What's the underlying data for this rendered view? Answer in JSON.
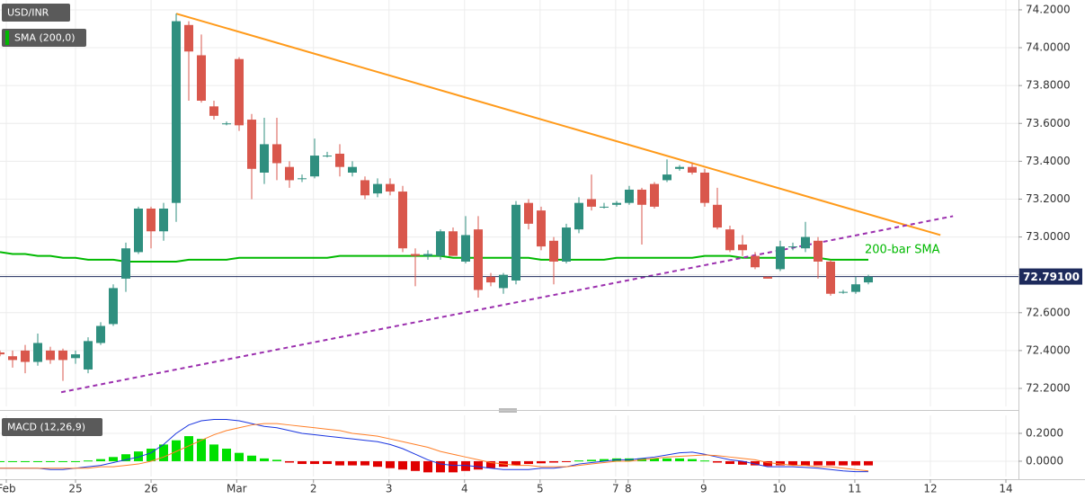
{
  "chart_data": {
    "type": "candlestick",
    "symbol": "USD/INR",
    "indicator": "SMA (200,0)",
    "indicator_color": "#00b900",
    "annotation": "200-bar SMA",
    "up_color": "#2f8f7f",
    "down_color": "#d9574c",
    "xlim": [
      0,
      80.9
    ],
    "xticks": [
      {
        "value": 0.5,
        "label": "Feb"
      },
      {
        "value": 6,
        "label": "25"
      },
      {
        "value": 12,
        "label": "26"
      },
      {
        "value": 18.8,
        "label": "Mar"
      },
      {
        "value": 24.9,
        "label": "2"
      },
      {
        "value": 30.9,
        "label": "3"
      },
      {
        "value": 36.9,
        "label": "4"
      },
      {
        "value": 42.9,
        "label": "5"
      },
      {
        "value": 48.9,
        "label": "7"
      },
      {
        "value": 49.9,
        "label": "8"
      },
      {
        "value": 55.9,
        "label": "9"
      },
      {
        "value": 61.9,
        "label": "10"
      },
      {
        "value": 67.9,
        "label": "11"
      },
      {
        "value": 73.9,
        "label": "12"
      },
      {
        "value": 79.9,
        "label": "14"
      }
    ],
    "ylim": [
      72.105,
      74.252
    ],
    "yticks": [
      {
        "value": 72.2,
        "label": "72.2000"
      },
      {
        "value": 72.4,
        "label": "72.4000"
      },
      {
        "value": 72.6,
        "label": "72.6000"
      },
      {
        "value": 72.8,
        "label": "72.8000"
      },
      {
        "value": 73.0,
        "label": "73.0000"
      },
      {
        "value": 73.2,
        "label": "73.2000"
      },
      {
        "value": 73.4,
        "label": "73.4000"
      },
      {
        "value": 73.6,
        "label": "73.6000"
      },
      {
        "value": 73.8,
        "label": "73.8000"
      },
      {
        "value": 74.0,
        "label": "74.0000"
      },
      {
        "value": 74.2,
        "label": "74.2000"
      }
    ],
    "grid": true,
    "open": [
      72.39,
      72.37,
      72.4,
      72.34,
      72.4,
      72.4,
      72.36,
      72.3,
      72.44,
      72.54,
      72.78,
      72.92,
      73.15,
      73.03,
      73.18,
      74.12,
      73.96,
      73.69,
      73.6,
      73.94,
      73.62,
      73.34,
      73.49,
      73.37,
      73.31,
      73.32,
      73.43,
      73.44,
      73.34,
      73.3,
      73.23,
      73.28,
      73.24,
      72.91,
      72.9,
      72.9,
      73.03,
      72.87,
      73.04,
      72.79,
      72.73,
      72.77,
      73.18,
      73.14,
      72.98,
      72.87,
      73.04,
      73.2,
      73.16,
      73.17,
      73.18,
      73.25,
      73.28,
      73.3,
      73.36,
      73.37,
      73.34,
      73.17,
      73.04,
      72.96,
      72.9,
      72.79,
      72.83,
      72.95,
      72.94,
      72.98,
      72.87,
      72.71,
      72.71,
      72.76
    ],
    "high": [
      72.4,
      72.4,
      72.43,
      72.49,
      72.42,
      72.41,
      72.4,
      72.47,
      72.55,
      72.75,
      72.97,
      73.16,
      73.16,
      73.18,
      74.18,
      74.14,
      74.07,
      73.72,
      73.61,
      73.95,
      73.65,
      73.63,
      73.63,
      73.4,
      73.33,
      73.52,
      73.45,
      73.49,
      73.4,
      73.32,
      73.31,
      73.31,
      73.27,
      72.94,
      72.93,
      73.04,
      73.05,
      73.11,
      73.11,
      72.81,
      72.81,
      73.19,
      73.2,
      73.16,
      73.0,
      73.07,
      73.21,
      73.33,
      73.18,
      73.19,
      73.27,
      73.26,
      73.29,
      73.41,
      73.38,
      73.39,
      73.36,
      73.26,
      73.06,
      73.01,
      72.92,
      72.79,
      72.98,
      72.97,
      73.08,
      73.0,
      72.88,
      72.72,
      72.79,
      72.8
    ],
    "low": [
      72.37,
      72.31,
      72.28,
      72.32,
      72.33,
      72.24,
      72.33,
      72.28,
      72.43,
      72.53,
      72.71,
      72.91,
      72.94,
      72.98,
      73.08,
      73.72,
      73.71,
      73.62,
      73.59,
      73.56,
      73.2,
      73.28,
      73.3,
      73.26,
      73.29,
      73.31,
      73.42,
      73.32,
      73.32,
      73.2,
      73.21,
      73.22,
      72.92,
      72.74,
      72.88,
      72.88,
      72.9,
      72.86,
      72.68,
      72.74,
      72.7,
      72.75,
      73.04,
      72.93,
      72.75,
      72.86,
      73.02,
      73.14,
      73.15,
      73.16,
      73.17,
      72.96,
      73.15,
      73.29,
      73.35,
      73.33,
      73.16,
      73.04,
      72.92,
      72.9,
      72.83,
      72.78,
      72.82,
      72.93,
      72.92,
      72.78,
      72.69,
      72.7,
      72.7,
      72.75
    ],
    "close": [
      72.38,
      72.35,
      72.34,
      72.44,
      72.35,
      72.35,
      72.38,
      72.45,
      72.53,
      72.73,
      72.94,
      73.15,
      73.03,
      73.15,
      74.14,
      73.98,
      73.72,
      73.64,
      73.6,
      73.59,
      73.36,
      73.49,
      73.39,
      73.3,
      73.31,
      73.43,
      73.43,
      73.37,
      73.37,
      73.22,
      73.28,
      73.24,
      72.94,
      72.9,
      72.91,
      73.03,
      72.9,
      73.01,
      72.72,
      72.76,
      72.8,
      73.17,
      73.07,
      72.95,
      72.87,
      73.05,
      73.18,
      73.16,
      73.16,
      73.18,
      73.25,
      73.17,
      73.16,
      73.33,
      73.37,
      73.34,
      73.18,
      73.05,
      72.93,
      72.93,
      72.84,
      72.78,
      72.95,
      72.95,
      73.0,
      72.87,
      72.7,
      72.71,
      72.75,
      72.79
    ],
    "sma": [
      72.92,
      72.91,
      72.91,
      72.9,
      72.9,
      72.89,
      72.89,
      72.88,
      72.88,
      72.88,
      72.87,
      72.87,
      72.87,
      72.87,
      72.87,
      72.88,
      72.88,
      72.88,
      72.88,
      72.89,
      72.89,
      72.89,
      72.89,
      72.89,
      72.89,
      72.89,
      72.89,
      72.9,
      72.9,
      72.9,
      72.9,
      72.9,
      72.9,
      72.9,
      72.9,
      72.9,
      72.89,
      72.89,
      72.89,
      72.89,
      72.89,
      72.89,
      72.89,
      72.88,
      72.88,
      72.88,
      72.88,
      72.88,
      72.88,
      72.89,
      72.89,
      72.89,
      72.89,
      72.89,
      72.89,
      72.89,
      72.9,
      72.9,
      72.9,
      72.89,
      72.89,
      72.89,
      72.89,
      72.89,
      72.89,
      72.89,
      72.88,
      72.88,
      72.88,
      72.88
    ],
    "trendlines": [
      {
        "color": "#ff9a1a",
        "dashed": false,
        "x": [
          14,
          74.7
        ],
        "y": [
          74.18,
          73.01
        ]
      },
      {
        "color": "#9b2fae",
        "dashed": true,
        "x": [
          4.86,
          75.7
        ],
        "y": [
          72.18,
          73.11
        ]
      }
    ],
    "last": {
      "value": 72.791,
      "label": "72.79100"
    },
    "last_color": "#1d2a5c",
    "macd": {
      "title": "MACD (12,26,9)",
      "ylim": [
        -0.11,
        0.329
      ],
      "yticks": [
        {
          "value": 0,
          "label": "0.0000"
        },
        {
          "value": 0.2,
          "label": "0.2000"
        }
      ],
      "series": [
        {
          "color": "#1a35e0",
          "values": [
            -0.05,
            -0.05,
            -0.05,
            -0.05,
            -0.06,
            -0.06,
            -0.05,
            -0.04,
            -0.03,
            -0.01,
            0.01,
            0.03,
            0.06,
            0.12,
            0.2,
            0.26,
            0.29,
            0.3,
            0.3,
            0.29,
            0.27,
            0.25,
            0.24,
            0.22,
            0.2,
            0.19,
            0.18,
            0.17,
            0.16,
            0.15,
            0.14,
            0.12,
            0.09,
            0.05,
            0.01,
            -0.02,
            -0.03,
            -0.03,
            -0.04,
            -0.05,
            -0.06,
            -0.06,
            -0.06,
            -0.05,
            -0.05,
            -0.04,
            -0.02,
            -0.01,
            0.0,
            0.01,
            0.01,
            0.02,
            0.03,
            0.045,
            0.06,
            0.065,
            0.05,
            0.03,
            0.01,
            0.0,
            -0.02,
            -0.04,
            -0.04,
            -0.04,
            -0.045,
            -0.05,
            -0.06,
            -0.07,
            -0.075,
            -0.075
          ]
        },
        {
          "color": "#ff7f27",
          "values": [
            -0.05,
            -0.05,
            -0.05,
            -0.05,
            -0.05,
            -0.05,
            -0.05,
            -0.05,
            -0.04,
            -0.04,
            -0.03,
            -0.02,
            0.0,
            0.03,
            0.07,
            0.11,
            0.15,
            0.19,
            0.22,
            0.24,
            0.26,
            0.27,
            0.27,
            0.26,
            0.25,
            0.24,
            0.23,
            0.22,
            0.2,
            0.19,
            0.18,
            0.16,
            0.14,
            0.12,
            0.1,
            0.07,
            0.05,
            0.03,
            0.01,
            -0.01,
            -0.02,
            -0.03,
            -0.03,
            -0.04,
            -0.04,
            -0.04,
            -0.03,
            -0.02,
            -0.01,
            0.0,
            0.0,
            0.01,
            0.02,
            0.03,
            0.035,
            0.04,
            0.045,
            0.04,
            0.03,
            0.02,
            0.01,
            -0.01,
            -0.02,
            -0.03,
            -0.03,
            -0.04,
            -0.04,
            -0.05,
            -0.06,
            -0.07
          ]
        }
      ],
      "histogram": [
        0.0,
        0.0,
        0.0,
        0.0,
        0.0,
        0.0,
        0.0,
        0.005,
        0.015,
        0.03,
        0.05,
        0.07,
        0.09,
        0.12,
        0.15,
        0.18,
        0.16,
        0.12,
        0.09,
        0.06,
        0.04,
        0.02,
        0.01,
        -0.01,
        -0.02,
        -0.02,
        -0.02,
        -0.03,
        -0.03,
        -0.03,
        -0.04,
        -0.05,
        -0.06,
        -0.07,
        -0.08,
        -0.08,
        -0.08,
        -0.07,
        -0.06,
        -0.05,
        -0.04,
        -0.03,
        -0.02,
        -0.015,
        -0.01,
        -0.005,
        0.005,
        0.01,
        0.015,
        0.02,
        0.02,
        0.02,
        0.02,
        0.02,
        0.02,
        0.015,
        0.005,
        -0.01,
        -0.02,
        -0.025,
        -0.03,
        -0.035,
        -0.03,
        -0.03,
        -0.03,
        -0.03,
        -0.03,
        -0.03,
        -0.03,
        -0.03
      ],
      "hist_up_color": "#00e000",
      "hist_down_color": "#e00000"
    }
  }
}
